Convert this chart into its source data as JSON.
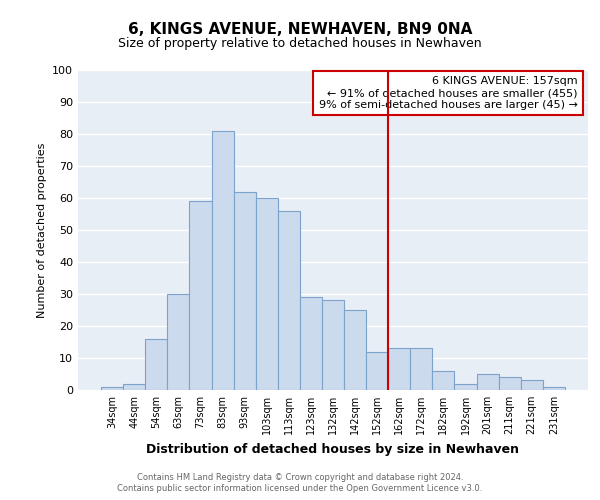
{
  "title": "6, KINGS AVENUE, NEWHAVEN, BN9 0NA",
  "subtitle": "Size of property relative to detached houses in Newhaven",
  "xlabel": "Distribution of detached houses by size in Newhaven",
  "ylabel": "Number of detached properties",
  "bar_labels": [
    "34sqm",
    "44sqm",
    "54sqm",
    "63sqm",
    "73sqm",
    "83sqm",
    "93sqm",
    "103sqm",
    "113sqm",
    "123sqm",
    "132sqm",
    "142sqm",
    "152sqm",
    "162sqm",
    "172sqm",
    "182sqm",
    "192sqm",
    "201sqm",
    "211sqm",
    "221sqm",
    "231sqm"
  ],
  "bar_values": [
    1,
    2,
    16,
    30,
    59,
    81,
    62,
    60,
    56,
    29,
    28,
    25,
    12,
    13,
    13,
    6,
    2,
    5,
    4,
    3,
    1
  ],
  "bar_color": "#ccdaed",
  "bar_edge_color": "#7ba3cc",
  "vline_color": "#cc0000",
  "vline_x": 12.5,
  "ylim": [
    0,
    100
  ],
  "yticks": [
    0,
    10,
    20,
    30,
    40,
    50,
    60,
    70,
    80,
    90,
    100
  ],
  "annotation_title": "6 KINGS AVENUE: 157sqm",
  "annotation_line1": "← 91% of detached houses are smaller (455)",
  "annotation_line2": "9% of semi-detached houses are larger (45) →",
  "annotation_box_facecolor": "#ffffff",
  "annotation_box_edgecolor": "#cc0000",
  "footnote1": "Contains HM Land Registry data © Crown copyright and database right 2024.",
  "footnote2": "Contains public sector information licensed under the Open Government Licence v3.0.",
  "fig_facecolor": "#ffffff",
  "plot_facecolor": "#e8eef5",
  "grid_color": "#ffffff",
  "title_fontsize": 11,
  "subtitle_fontsize": 9,
  "ylabel_fontsize": 8,
  "xlabel_fontsize": 9,
  "ytick_fontsize": 8,
  "xtick_fontsize": 7,
  "footnote_fontsize": 6,
  "annotation_fontsize": 8
}
